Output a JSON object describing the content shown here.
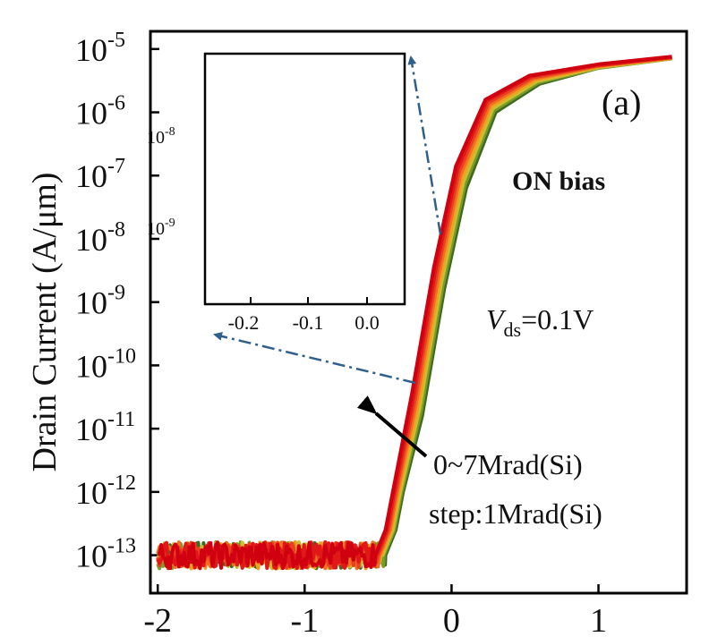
{
  "chart_data": {
    "type": "line",
    "ylabel": "Drain Current (A/μm)",
    "xlim": [
      -2.05,
      1.6
    ],
    "ylim_log10": [
      -13.6,
      -4.72
    ],
    "yscale": "log",
    "x_ticks": [
      -2,
      -1,
      0,
      1
    ],
    "x_tick_labels": [
      "-2",
      "-1",
      "0",
      "1"
    ],
    "y_ticks": [
      -13,
      -12,
      -11,
      -10,
      -9,
      -8,
      -7,
      -6,
      -5
    ],
    "y_tick_base": "10",
    "y_tick_exponents": [
      "-13",
      "-12",
      "-11",
      "-10",
      "-9",
      "-8",
      "-7",
      "-6",
      "-5"
    ],
    "panel_label": "(a)",
    "annotations": {
      "bias": "ON bias",
      "vds_symbol": "V",
      "vds_sub": "ds",
      "vds_value": "=0.1V",
      "dose_range": "0~7Mrad(Si)",
      "dose_step": "step:1Mrad(Si)"
    },
    "colors": {
      "series": [
        "#3d6b1f",
        "#7a9a2a",
        "#c8c030",
        "#f0a020",
        "#f07020",
        "#e84020",
        "#e01818",
        "#d00010"
      ],
      "arrow": "#2f5f8a"
    },
    "series": [
      {
        "dose_mrad": 0,
        "color_index": 0,
        "x": [
          -2.0,
          -0.45,
          -0.38,
          -0.33,
          -0.2,
          -0.05,
          0.1,
          0.3,
          0.6,
          1.0,
          1.5
        ],
        "y_log10": [
          -13.0,
          -13.0,
          -12.6,
          -12.0,
          -10.8,
          -8.8,
          -7.2,
          -6.0,
          -5.55,
          -5.3,
          -5.15
        ]
      },
      {
        "dose_mrad": 1,
        "color_index": 1,
        "x": [
          -2.0,
          -0.46,
          -0.39,
          -0.34,
          -0.21,
          -0.06,
          0.09,
          0.29,
          0.59,
          1.0,
          1.5
        ],
        "y_log10": [
          -13.0,
          -13.0,
          -12.6,
          -12.0,
          -10.75,
          -8.75,
          -7.15,
          -5.97,
          -5.53,
          -5.3,
          -5.15
        ]
      },
      {
        "dose_mrad": 2,
        "color_index": 2,
        "x": [
          -2.0,
          -0.47,
          -0.4,
          -0.35,
          -0.22,
          -0.07,
          0.08,
          0.28,
          0.58,
          1.0,
          1.5
        ],
        "y_log10": [
          -13.0,
          -13.0,
          -12.6,
          -12.0,
          -10.7,
          -8.7,
          -7.1,
          -5.94,
          -5.51,
          -5.29,
          -5.15
        ]
      },
      {
        "dose_mrad": 3,
        "color_index": 3,
        "x": [
          -2.0,
          -0.48,
          -0.41,
          -0.36,
          -0.23,
          -0.08,
          0.07,
          0.27,
          0.57,
          1.0,
          1.5
        ],
        "y_log10": [
          -13.0,
          -13.0,
          -12.6,
          -12.0,
          -10.65,
          -8.65,
          -7.05,
          -5.91,
          -5.49,
          -5.28,
          -5.14
        ]
      },
      {
        "dose_mrad": 4,
        "color_index": 4,
        "x": [
          -2.0,
          -0.49,
          -0.42,
          -0.37,
          -0.24,
          -0.09,
          0.06,
          0.26,
          0.56,
          1.0,
          1.5
        ],
        "y_log10": [
          -13.0,
          -13.0,
          -12.6,
          -12.0,
          -10.6,
          -8.6,
          -7.0,
          -5.88,
          -5.47,
          -5.27,
          -5.14
        ]
      },
      {
        "dose_mrad": 5,
        "color_index": 5,
        "x": [
          -2.0,
          -0.5,
          -0.43,
          -0.38,
          -0.25,
          -0.1,
          0.05,
          0.25,
          0.55,
          1.0,
          1.5
        ],
        "y_log10": [
          -13.0,
          -13.0,
          -12.6,
          -12.0,
          -10.55,
          -8.55,
          -6.95,
          -5.85,
          -5.45,
          -5.26,
          -5.13
        ]
      },
      {
        "dose_mrad": 6,
        "color_index": 6,
        "x": [
          -2.0,
          -0.51,
          -0.44,
          -0.39,
          -0.26,
          -0.11,
          0.04,
          0.24,
          0.54,
          1.0,
          1.5
        ],
        "y_log10": [
          -13.0,
          -13.0,
          -12.6,
          -12.0,
          -10.5,
          -8.5,
          -6.9,
          -5.82,
          -5.43,
          -5.25,
          -5.13
        ]
      },
      {
        "dose_mrad": 7,
        "color_index": 7,
        "x": [
          -2.0,
          -0.52,
          -0.45,
          -0.4,
          -0.27,
          -0.12,
          0.03,
          0.23,
          0.53,
          1.0,
          1.5
        ],
        "y_log10": [
          -13.0,
          -13.0,
          -12.6,
          -12.0,
          -10.45,
          -8.45,
          -6.85,
          -5.8,
          -5.42,
          -5.24,
          -5.12
        ]
      }
    ],
    "inset": {
      "x_ticks": [
        -0.2,
        -0.1,
        0.0
      ],
      "x_tick_labels": [
        "-0.2",
        "-0.1",
        "0.0"
      ],
      "y_ticks": [
        -8,
        -9
      ],
      "y_tick_base": "10",
      "y_tick_exponents": [
        "-8",
        "-9"
      ]
    }
  }
}
